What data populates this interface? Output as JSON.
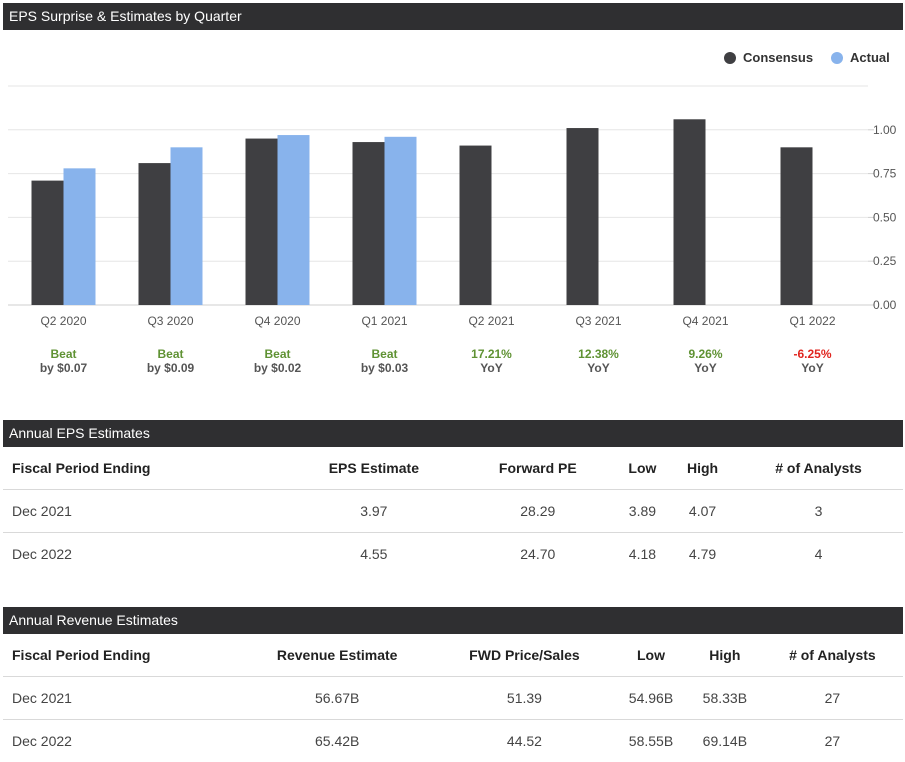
{
  "chart_section": {
    "title": "EPS Surprise & Estimates by Quarter"
  },
  "legend": [
    {
      "label": "Consensus",
      "color": "#3f3f42"
    },
    {
      "label": "Actual",
      "color": "#88b3ec"
    }
  ],
  "chart_data": {
    "type": "bar",
    "categories": [
      "Q2 2020",
      "Q3 2020",
      "Q4 2020",
      "Q1 2021",
      "Q2 2021",
      "Q3 2021",
      "Q4 2021",
      "Q1 2022"
    ],
    "series": [
      {
        "name": "Consensus",
        "color": "#3f3f42",
        "values": [
          0.71,
          0.81,
          0.95,
          0.93,
          0.91,
          1.01,
          1.06,
          0.9
        ]
      },
      {
        "name": "Actual",
        "color": "#88b3ec",
        "values": [
          0.78,
          0.9,
          0.97,
          0.96,
          null,
          null,
          null,
          null
        ]
      }
    ],
    "ylim": [
      0,
      1.25
    ],
    "yticks": [
      "0.00",
      "0.25",
      "0.50",
      "0.75",
      "1.00"
    ],
    "grid": true,
    "legend_position": "top-right",
    "annotations": [
      {
        "line1": "Beat",
        "line2": "by $0.07",
        "tone": "positive"
      },
      {
        "line1": "Beat",
        "line2": "by $0.09",
        "tone": "positive"
      },
      {
        "line1": "Beat",
        "line2": "by $0.02",
        "tone": "positive"
      },
      {
        "line1": "Beat",
        "line2": "by $0.03",
        "tone": "positive"
      },
      {
        "line1": "17.21%",
        "line2": "YoY",
        "tone": "positive"
      },
      {
        "line1": "12.38%",
        "line2": "YoY",
        "tone": "positive"
      },
      {
        "line1": "9.26%",
        "line2": "YoY",
        "tone": "positive"
      },
      {
        "line1": "-6.25%",
        "line2": "YoY",
        "tone": "negative"
      }
    ]
  },
  "colors": {
    "positive": "#5f9233",
    "negative": "#e0251f",
    "subtext": "#555555",
    "header_bg": "#2f2f31"
  },
  "eps_table": {
    "title": "Annual EPS Estimates",
    "headers": [
      "Fiscal Period Ending",
      "EPS Estimate",
      "Forward PE",
      "Low",
      "High",
      "# of Analysts"
    ],
    "rows": [
      [
        "Dec 2021",
        "3.97",
        "28.29",
        "3.89",
        "4.07",
        "3"
      ],
      [
        "Dec 2022",
        "4.55",
        "24.70",
        "4.18",
        "4.79",
        "4"
      ]
    ]
  },
  "revenue_table": {
    "title": "Annual Revenue Estimates",
    "headers": [
      "Fiscal Period Ending",
      "Revenue Estimate",
      "FWD Price/Sales",
      "Low",
      "High",
      "# of Analysts"
    ],
    "rows": [
      [
        "Dec 2021",
        "56.67B",
        "51.39",
        "54.96B",
        "58.33B",
        "27"
      ],
      [
        "Dec 2022",
        "65.42B",
        "44.52",
        "58.55B",
        "69.14B",
        "27"
      ]
    ]
  }
}
